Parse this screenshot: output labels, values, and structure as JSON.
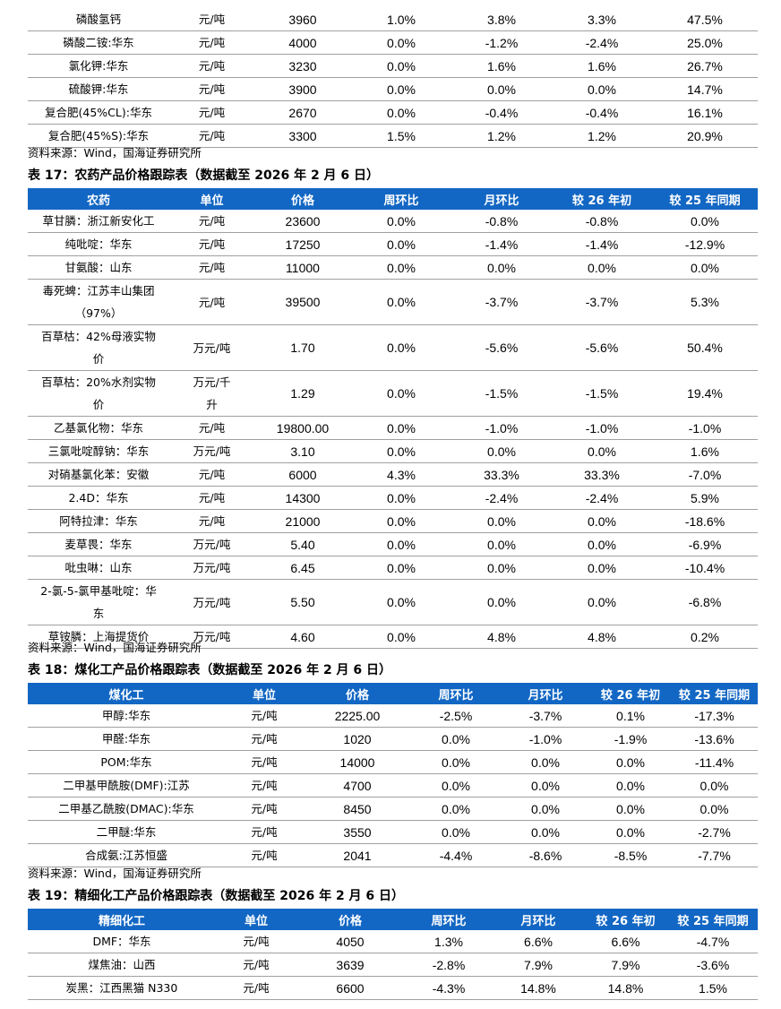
{
  "table16_tail": {
    "rows": [
      {
        "name": "磷酸氢钙",
        "unit": "元/吨",
        "price": "3960",
        "wow": "1.0%",
        "mom": "3.8%",
        "ytd": "3.3%",
        "yoy": "47.5%"
      },
      {
        "name": "磷酸二铵:华东",
        "unit": "元/吨",
        "price": "4000",
        "wow": "0.0%",
        "mom": "-1.2%",
        "ytd": "-2.4%",
        "yoy": "25.0%"
      },
      {
        "name": "氯化钾:华东",
        "unit": "元/吨",
        "price": "3230",
        "wow": "0.0%",
        "mom": "1.6%",
        "ytd": "1.6%",
        "yoy": "26.7%"
      },
      {
        "name": "硫酸钾:华东",
        "unit": "元/吨",
        "price": "3900",
        "wow": "0.0%",
        "mom": "0.0%",
        "ytd": "0.0%",
        "yoy": "14.7%"
      },
      {
        "name": "复合肥(45%CL):华东",
        "unit": "元/吨",
        "price": "2670",
        "wow": "0.0%",
        "mom": "-0.4%",
        "ytd": "-0.4%",
        "yoy": "16.1%"
      },
      {
        "name": "复合肥(45%S):华东",
        "unit": "元/吨",
        "price": "3300",
        "wow": "1.5%",
        "mom": "1.2%",
        "ytd": "1.2%",
        "yoy": "20.9%"
      }
    ],
    "source": "资料来源：Wind，国海证券研究所"
  },
  "table17": {
    "title": "表 17：农药产品价格跟踪表（数据截至 2026 年 2 月 6 日）",
    "headers": {
      "name": "农药",
      "unit": "单位",
      "price": "价格",
      "wow": "周环比",
      "mom": "月环比",
      "ytd": "较 26 年初",
      "yoy": "较 25 年同期"
    },
    "rows": [
      {
        "name": "草甘膦：浙江新安化工",
        "unit": "元/吨",
        "price": "23600",
        "wow": "0.0%",
        "mom": "-0.8%",
        "ytd": "-0.8%",
        "yoy": "0.0%"
      },
      {
        "name": "纯吡啶：华东",
        "unit": "元/吨",
        "price": "17250",
        "wow": "0.0%",
        "mom": "-1.4%",
        "ytd": "-1.4%",
        "yoy": "-12.9%"
      },
      {
        "name": "甘氨酸：山东",
        "unit": "元/吨",
        "price": "11000",
        "wow": "0.0%",
        "mom": "0.0%",
        "ytd": "0.0%",
        "yoy": "0.0%"
      },
      {
        "name_l1": "毒死蜱：江苏丰山集团",
        "name_l2": "（97%）",
        "unit": "元/吨",
        "price": "39500",
        "wow": "0.0%",
        "mom": "-3.7%",
        "ytd": "-3.7%",
        "yoy": "5.3%"
      },
      {
        "name_l1": "百草枯：42%母液实物",
        "name_l2": "价",
        "unit": "万元/吨",
        "price": "1.70",
        "wow": "0.0%",
        "mom": "-5.6%",
        "ytd": "-5.6%",
        "yoy": "50.4%"
      },
      {
        "name_l1": "百草枯：20%水剂实物",
        "name_l2": "价",
        "unit_l1": "万元/千",
        "unit_l2": "升",
        "price": "1.29",
        "wow": "0.0%",
        "mom": "-1.5%",
        "ytd": "-1.5%",
        "yoy": "19.4%"
      },
      {
        "name": "乙基氯化物：华东",
        "unit": "元/吨",
        "price": "19800.00",
        "wow": "0.0%",
        "mom": "-1.0%",
        "ytd": "-1.0%",
        "yoy": "-1.0%"
      },
      {
        "name": "三氯吡啶醇钠：华东",
        "unit": "万元/吨",
        "price": "3.10",
        "wow": "0.0%",
        "mom": "0.0%",
        "ytd": "0.0%",
        "yoy": "1.6%"
      },
      {
        "name": "对硝基氯化苯：安徽",
        "unit": "元/吨",
        "price": "6000",
        "wow": "4.3%",
        "mom": "33.3%",
        "ytd": "33.3%",
        "yoy": "-7.0%"
      },
      {
        "name": "2.4D：华东",
        "unit": "元/吨",
        "price": "14300",
        "wow": "0.0%",
        "mom": "-2.4%",
        "ytd": "-2.4%",
        "yoy": "5.9%"
      },
      {
        "name": "阿特拉津：华东",
        "unit": "元/吨",
        "price": "21000",
        "wow": "0.0%",
        "mom": "0.0%",
        "ytd": "0.0%",
        "yoy": "-18.6%"
      },
      {
        "name": "麦草畏：华东",
        "unit": "万元/吨",
        "price": "5.40",
        "wow": "0.0%",
        "mom": "0.0%",
        "ytd": "0.0%",
        "yoy": "-6.9%"
      },
      {
        "name": "吡虫啉：山东",
        "unit": "万元/吨",
        "price": "6.45",
        "wow": "0.0%",
        "mom": "0.0%",
        "ytd": "0.0%",
        "yoy": "-10.4%"
      },
      {
        "name_l1": "2-氯-5-氯甲基吡啶：华",
        "name_l2": "东",
        "unit": "万元/吨",
        "price": "5.50",
        "wow": "0.0%",
        "mom": "0.0%",
        "ytd": "0.0%",
        "yoy": "-6.8%"
      },
      {
        "name": "草铵膦：上海提货价",
        "unit": "万元/吨",
        "price": "4.60",
        "wow": "0.0%",
        "mom": "4.8%",
        "ytd": "4.8%",
        "yoy": "0.2%"
      }
    ],
    "source": "资料来源：Wind，国海证券研究所"
  },
  "table18": {
    "title": "表 18：煤化工产品价格跟踪表（数据截至 2026 年 2 月 6 日）",
    "headers": {
      "name": "煤化工",
      "unit": "单位",
      "price": "价格",
      "wow": "周环比",
      "mom": "月环比",
      "ytd": "较 26 年初",
      "yoy": "较 25 年同期"
    },
    "rows": [
      {
        "name": "甲醇:华东",
        "unit": "元/吨",
        "price": "2225.00",
        "wow": "-2.5%",
        "mom": "-3.7%",
        "ytd": "0.1%",
        "yoy": "-17.3%"
      },
      {
        "name": "甲醛:华东",
        "unit": "元/吨",
        "price": "1020",
        "wow": "0.0%",
        "mom": "-1.0%",
        "ytd": "-1.9%",
        "yoy": "-13.6%"
      },
      {
        "name": "POM:华东",
        "unit": "元/吨",
        "price": "14000",
        "wow": "0.0%",
        "mom": "0.0%",
        "ytd": "0.0%",
        "yoy": "-11.4%"
      },
      {
        "name": "二甲基甲酰胺(DMF):江苏",
        "unit": "元/吨",
        "price": "4700",
        "wow": "0.0%",
        "mom": "0.0%",
        "ytd": "0.0%",
        "yoy": "0.0%"
      },
      {
        "name": "二甲基乙酰胺(DMAC):华东",
        "unit": "元/吨",
        "price": "8450",
        "wow": "0.0%",
        "mom": "0.0%",
        "ytd": "0.0%",
        "yoy": "0.0%"
      },
      {
        "name": "二甲醚:华东",
        "unit": "元/吨",
        "price": "3550",
        "wow": "0.0%",
        "mom": "0.0%",
        "ytd": "0.0%",
        "yoy": "-2.7%"
      },
      {
        "name": "合成氨:江苏恒盛",
        "unit": "元/吨",
        "price": "2041",
        "wow": "-4.4%",
        "mom": "-8.6%",
        "ytd": "-8.5%",
        "yoy": "-7.7%"
      }
    ],
    "source": "资料来源：Wind，国海证券研究所"
  },
  "table19": {
    "title": "表 19：精细化工产品价格跟踪表（数据截至 2026 年 2 月 6 日）",
    "headers": {
      "name": "精细化工",
      "unit": "单位",
      "price": "价格",
      "wow": "周环比",
      "mom": "月环比",
      "ytd": "较 26 年初",
      "yoy": "较 25 年同期"
    },
    "rows": [
      {
        "name": "DMF：华东",
        "unit": "元/吨",
        "price": "4050",
        "wow": "1.3%",
        "mom": "6.6%",
        "ytd": "6.6%",
        "yoy": "-4.7%"
      },
      {
        "name": "煤焦油：山西",
        "unit": "元/吨",
        "price": "3639",
        "wow": "-2.8%",
        "mom": "7.9%",
        "ytd": "7.9%",
        "yoy": "-3.6%"
      },
      {
        "name": "炭黑：江西黑猫 N330",
        "unit": "元/吨",
        "price": "6600",
        "wow": "-4.3%",
        "mom": "14.8%",
        "ytd": "14.8%",
        "yoy": "1.5%"
      }
    ]
  }
}
